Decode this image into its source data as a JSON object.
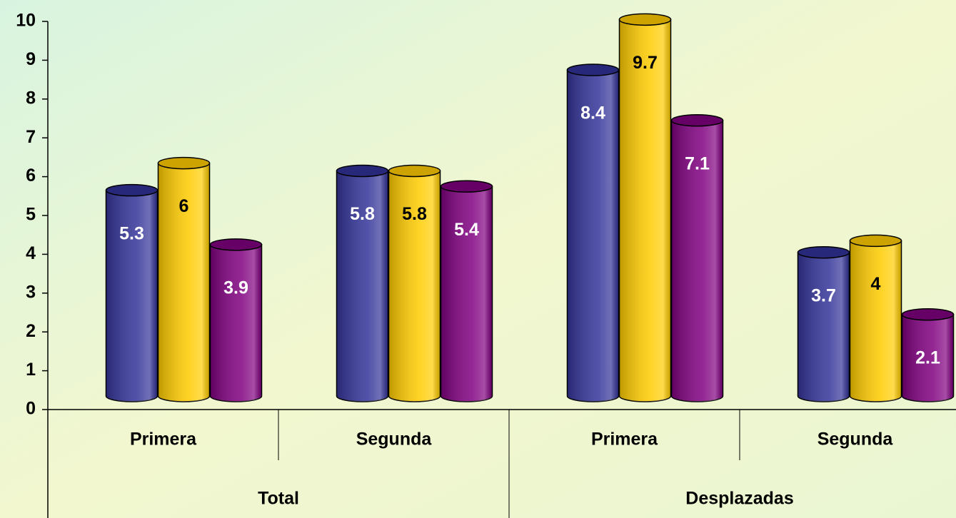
{
  "chart_data": {
    "type": "bar3d",
    "groups": [
      {
        "label": "Total",
        "categories": [
          "Primera",
          "Segunda"
        ]
      },
      {
        "label": "Desplazadas",
        "categories": [
          "Primera",
          "Segunda"
        ]
      }
    ],
    "series": [
      {
        "color": "#333399",
        "label_color": "#ffffff",
        "values": [
          5.3,
          5.8,
          8.4,
          3.7
        ]
      },
      {
        "color": "#ffcc00",
        "label_color": "#000000",
        "values": [
          6,
          5.8,
          9.7,
          4
        ]
      },
      {
        "color": "#800080",
        "label_color": "#ffffff",
        "values": [
          3.9,
          5.4,
          7.1,
          2.1
        ]
      }
    ],
    "ylim": [
      0,
      10
    ],
    "yticks": [
      0,
      1,
      2,
      3,
      4,
      5,
      6,
      7,
      8,
      9,
      10
    ]
  }
}
